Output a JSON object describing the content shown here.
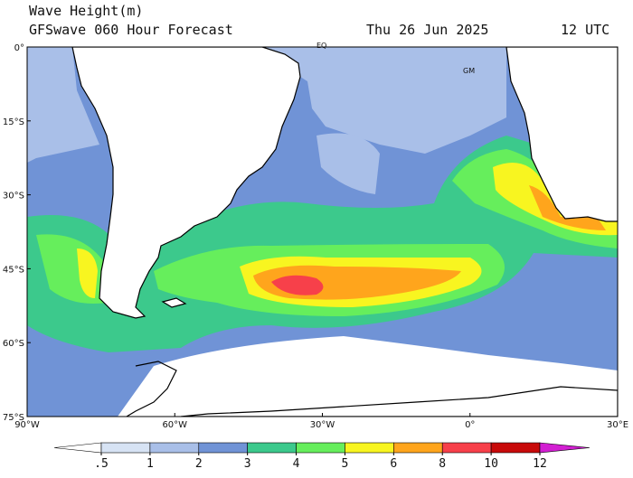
{
  "header": {
    "title": "Wave Height(m)",
    "subtitle": "GFSwave 060 Hour Forecast",
    "date": "Thu 26 Jun 2025",
    "time": "12 UTC"
  },
  "map": {
    "lat_labels": [
      "0°",
      "15°S",
      "30°S",
      "45°S",
      "60°S",
      "75°S"
    ],
    "lon_labels": [
      "90°W",
      "60°W",
      "30°W",
      "0°",
      "30°E"
    ],
    "place_labels": [
      "EQ",
      "GM"
    ]
  },
  "colorbar": {
    "levels": [
      {
        "value": 0.5,
        "label": ".5"
      },
      1,
      2,
      3,
      4,
      5,
      6,
      8,
      10,
      12
    ],
    "colors": [
      "#ffffff",
      "#d7e3f4",
      "#a9bfe8",
      "#7093d6",
      "#3cc98c",
      "#66ee5c",
      "#f8f520",
      "#ffa51c",
      "#f7404a",
      "#c80a0a",
      "#d21fd2"
    ]
  }
}
